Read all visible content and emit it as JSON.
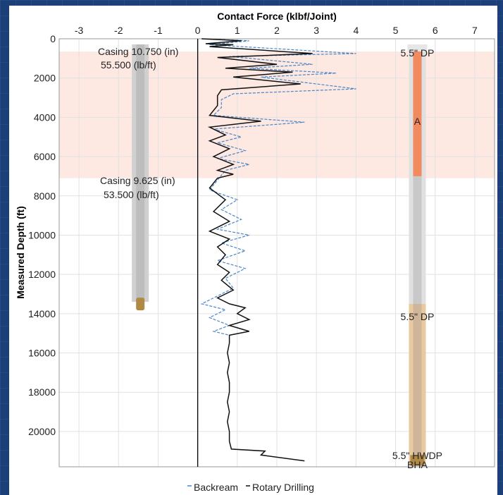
{
  "chart_data": {
    "type": "line",
    "title": "Contact Force (klbf/Joint)",
    "xlabel": "Contact Force (klbf/Joint)",
    "ylabel": "Measured Depth (ft)",
    "xlim": [
      -3.5,
      7.5
    ],
    "ylim": [
      0,
      21800
    ],
    "y_inverted": true,
    "x_ticks": [
      -3,
      -2,
      -1,
      0,
      1,
      2,
      3,
      4,
      5,
      6,
      7
    ],
    "y_ticks": [
      0,
      2000,
      4000,
      6000,
      8000,
      10000,
      12000,
      14000,
      16000,
      18000,
      20000
    ],
    "grid": true,
    "legend_position": "bottom",
    "legend": [
      "Backream",
      "Rotary Drilling"
    ],
    "colors": {
      "backream": "#4a86c8",
      "rotary": "#111111",
      "casing": "#d0d0d0",
      "shaded_zone": "#fde8e2",
      "marker_A": "#f28a60",
      "hwdp": "#e8c9a0"
    },
    "shaded_zone": {
      "depth_from": 650,
      "depth_to": 7100
    },
    "casings": [
      {
        "label": "Casing 10.750 (in)",
        "weight": "55.500 (lb/ft)",
        "shoe_depth": 13400,
        "x_center": -1.45
      },
      {
        "label": "Casing 9.625 (in)",
        "weight": "53.500 (lb/ft)",
        "shoe_depth": 13400,
        "x_center": -1.45
      }
    ],
    "string_annotations": [
      {
        "label": "5.5\" DP",
        "depth": 350
      },
      {
        "label": "A",
        "depth": 3950
      },
      {
        "label": "5.5\" DP",
        "depth": 14000
      },
      {
        "label": "5.5\" HWDP",
        "depth": 21300
      },
      {
        "label": "BHA",
        "depth": 21650
      }
    ],
    "series": [
      {
        "name": "Rotary Drilling",
        "points": [
          [
            0.1,
            0
          ],
          [
            1.1,
            100
          ],
          [
            0.2,
            250
          ],
          [
            0.9,
            300
          ],
          [
            0.3,
            400
          ],
          [
            2.9,
            750
          ],
          [
            0.5,
            950
          ],
          [
            2.0,
            1300
          ],
          [
            0.7,
            1500
          ],
          [
            2.4,
            1700
          ],
          [
            0.9,
            1950
          ],
          [
            2.6,
            2300
          ],
          [
            0.6,
            2600
          ],
          [
            0.5,
            2900
          ],
          [
            0.5,
            3400
          ],
          [
            0.3,
            3900
          ],
          [
            1.6,
            4200
          ],
          [
            0.3,
            4500
          ],
          [
            0.7,
            4900
          ],
          [
            0.3,
            5200
          ],
          [
            0.8,
            5600
          ],
          [
            0.4,
            6000
          ],
          [
            0.9,
            6400
          ],
          [
            0.5,
            6700
          ],
          [
            0.9,
            6900
          ],
          [
            0.5,
            7100
          ],
          [
            0.3,
            7600
          ],
          [
            0.7,
            8200
          ],
          [
            0.4,
            8800
          ],
          [
            0.8,
            9300
          ],
          [
            0.3,
            9800
          ],
          [
            0.8,
            10200
          ],
          [
            0.5,
            10600
          ],
          [
            0.7,
            11000
          ],
          [
            0.5,
            11500
          ],
          [
            0.8,
            11900
          ],
          [
            0.6,
            12300
          ],
          [
            0.9,
            12800
          ],
          [
            0.5,
            13200
          ],
          [
            0.8,
            13500
          ],
          [
            1.2,
            13700
          ],
          [
            1.0,
            14000
          ],
          [
            1.3,
            14300
          ],
          [
            0.8,
            14600
          ],
          [
            1.3,
            14900
          ],
          [
            0.8,
            15100
          ],
          [
            0.8,
            15500
          ],
          [
            0.75,
            16000
          ],
          [
            0.8,
            16500
          ],
          [
            0.75,
            17000
          ],
          [
            0.8,
            17500
          ],
          [
            0.8,
            18000
          ],
          [
            0.75,
            18500
          ],
          [
            0.8,
            19000
          ],
          [
            0.75,
            19500
          ],
          [
            0.8,
            20000
          ],
          [
            0.8,
            20500
          ],
          [
            0.85,
            20900
          ],
          [
            1.7,
            21000
          ],
          [
            1.6,
            21200
          ],
          [
            2.7,
            21500
          ]
        ]
      },
      {
        "name": "Backream",
        "points": [
          [
            0.1,
            0
          ],
          [
            1.3,
            100
          ],
          [
            0.3,
            300
          ],
          [
            4.0,
            750
          ],
          [
            0.8,
            900
          ],
          [
            2.9,
            1300
          ],
          [
            1.3,
            1500
          ],
          [
            3.5,
            1750
          ],
          [
            1.6,
            1950
          ],
          [
            4.0,
            2550
          ],
          [
            0.9,
            2800
          ],
          [
            0.6,
            3100
          ],
          [
            0.6,
            3500
          ],
          [
            0.4,
            3900
          ],
          [
            2.7,
            4250
          ],
          [
            0.4,
            4600
          ],
          [
            1.1,
            5000
          ],
          [
            0.5,
            5300
          ],
          [
            1.2,
            5700
          ],
          [
            0.5,
            6100
          ],
          [
            1.3,
            6400
          ],
          [
            0.7,
            6700
          ],
          [
            0.5,
            7200
          ],
          [
            0.3,
            7700
          ],
          [
            1.0,
            8200
          ],
          [
            0.6,
            8700
          ],
          [
            1.1,
            9200
          ],
          [
            0.5,
            9700
          ],
          [
            1.3,
            10000
          ],
          [
            0.6,
            10400
          ],
          [
            1.2,
            10800
          ],
          [
            0.5,
            11300
          ],
          [
            1.2,
            11700
          ],
          [
            0.7,
            12200
          ],
          [
            0.9,
            12700
          ],
          [
            0.1,
            13500
          ],
          [
            0.7,
            13800
          ],
          [
            0.3,
            14200
          ],
          [
            0.8,
            14600
          ],
          [
            0.4,
            14900
          ],
          [
            0.8,
            15100
          ]
        ]
      }
    ]
  }
}
